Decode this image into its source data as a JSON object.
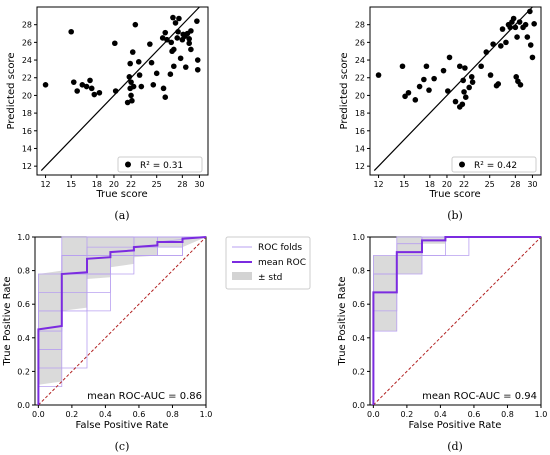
{
  "chart_data": [
    {
      "id": "a",
      "type": "scatter",
      "caption": "(a)",
      "xlabel": "True score",
      "ylabel": "Predicted score",
      "xlim": [
        11,
        31
      ],
      "ylim": [
        11,
        30
      ],
      "xticks": [
        12,
        15,
        18,
        20,
        22,
        25,
        28,
        30
      ],
      "yticks": [
        12,
        14,
        16,
        18,
        20,
        22,
        24,
        26,
        28
      ],
      "diagonal": true,
      "legend_text": "R² = 0.31",
      "legend_position": "lower-right",
      "points": [
        [
          12,
          21.2
        ],
        [
          15,
          27.2
        ],
        [
          15.3,
          21.5
        ],
        [
          15.7,
          20.5
        ],
        [
          16.3,
          21.2
        ],
        [
          16.8,
          21.0
        ],
        [
          17.2,
          21.7
        ],
        [
          17.4,
          20.8
        ],
        [
          17.7,
          20.1
        ],
        [
          18.3,
          20.3
        ],
        [
          20.1,
          25.9
        ],
        [
          20.2,
          20.5
        ],
        [
          21.6,
          19.2
        ],
        [
          21.8,
          22.1
        ],
        [
          21.9,
          23.6
        ],
        [
          21.9,
          20.8
        ],
        [
          22,
          21.5
        ],
        [
          22,
          20.0
        ],
        [
          22.1,
          19.4
        ],
        [
          22.2,
          24.9
        ],
        [
          22.3,
          21.0
        ],
        [
          22.5,
          28.0
        ],
        [
          22.9,
          23.8
        ],
        [
          23.0,
          22.3
        ],
        [
          23.2,
          21.0
        ],
        [
          24.2,
          25.8
        ],
        [
          24.4,
          23.7
        ],
        [
          24.6,
          21.2
        ],
        [
          25.0,
          22.5
        ],
        [
          25.7,
          26.5
        ],
        [
          25.8,
          20.8
        ],
        [
          26.0,
          19.8
        ],
        [
          26.0,
          27.1
        ],
        [
          26.2,
          26.3
        ],
        [
          26.6,
          22.4
        ],
        [
          26.7,
          26.0
        ],
        [
          26.8,
          25.0
        ],
        [
          26.9,
          28.8
        ],
        [
          27.0,
          23.3
        ],
        [
          27.0,
          25.2
        ],
        [
          27.2,
          28.2
        ],
        [
          27.4,
          26.5
        ],
        [
          27.5,
          27.2
        ],
        [
          27.6,
          28.7
        ],
        [
          27.8,
          24.2
        ],
        [
          28.0,
          26.3
        ],
        [
          28.1,
          26.9
        ],
        [
          28.3,
          26.7
        ],
        [
          28.4,
          23.2
        ],
        [
          28.6,
          27.0
        ],
        [
          28.8,
          25.9
        ],
        [
          28.8,
          26.4
        ],
        [
          29.0,
          25.2
        ],
        [
          29.0,
          27.3
        ],
        [
          29.7,
          28.4
        ],
        [
          29.8,
          24.0
        ],
        [
          29.8,
          22.9
        ]
      ]
    },
    {
      "id": "b",
      "type": "scatter",
      "caption": "(b)",
      "xlabel": "True score",
      "ylabel": "Predicted score",
      "xlim": [
        11,
        31
      ],
      "ylim": [
        11,
        30
      ],
      "xticks": [
        12,
        15,
        18,
        20,
        22,
        25,
        28,
        30
      ],
      "yticks": [
        12,
        14,
        16,
        18,
        20,
        22,
        24,
        26,
        28
      ],
      "diagonal": true,
      "legend_text": "R² = 0.42",
      "legend_position": "lower-right",
      "points": [
        [
          12,
          22.3
        ],
        [
          14.8,
          23.3
        ],
        [
          15.1,
          19.9
        ],
        [
          15.5,
          20.3
        ],
        [
          16.3,
          19.5
        ],
        [
          16.8,
          21.0
        ],
        [
          17.3,
          21.8
        ],
        [
          17.6,
          23.3
        ],
        [
          17.9,
          20.6
        ],
        [
          18.5,
          21.9
        ],
        [
          19.6,
          22.8
        ],
        [
          20.3,
          24.3
        ],
        [
          20.1,
          20.5
        ],
        [
          21.0,
          19.3
        ],
        [
          21.5,
          18.7
        ],
        [
          21.5,
          23.3
        ],
        [
          21.8,
          19.0
        ],
        [
          21.9,
          21.7
        ],
        [
          22.0,
          20.4
        ],
        [
          22.1,
          23.1
        ],
        [
          22.2,
          19.8
        ],
        [
          22.6,
          20.9
        ],
        [
          22.9,
          22.1
        ],
        [
          23.0,
          21.5
        ],
        [
          24.0,
          23.3
        ],
        [
          24.6,
          24.9
        ],
        [
          25.1,
          22.3
        ],
        [
          25.4,
          25.8
        ],
        [
          25.8,
          21.1
        ],
        [
          26.0,
          21.3
        ],
        [
          26.3,
          25.6
        ],
        [
          26.5,
          27.5
        ],
        [
          26.9,
          26.0
        ],
        [
          27.2,
          28.0
        ],
        [
          27.4,
          27.7
        ],
        [
          27.6,
          28.3
        ],
        [
          27.8,
          28.7
        ],
        [
          28.0,
          27.7
        ],
        [
          28.1,
          22.1
        ],
        [
          28.2,
          26.6
        ],
        [
          28.3,
          21.6
        ],
        [
          28.5,
          28.3
        ],
        [
          28.6,
          21.2
        ],
        [
          28.9,
          27.7
        ],
        [
          29.2,
          28.0
        ],
        [
          29.4,
          26.6
        ],
        [
          29.7,
          29.5
        ],
        [
          29.8,
          25.7
        ],
        [
          30.0,
          24.3
        ],
        [
          30.2,
          28.1
        ]
      ]
    },
    {
      "id": "c",
      "type": "line",
      "caption": "(c)",
      "xlabel": "False Positive Rate",
      "ylabel": "True Positive Rate",
      "xlim": [
        -0.02,
        1.0
      ],
      "ylim": [
        0.0,
        1.0
      ],
      "xticks": [
        0.0,
        0.2,
        0.4,
        0.6,
        0.8,
        1.0
      ],
      "yticks": [
        0.0,
        0.2,
        0.4,
        0.6,
        0.8,
        1.0
      ],
      "annotation": "mean ROC-AUC = 0.86",
      "legend_position": "outside-right",
      "legend": [
        "ROC folds",
        "mean ROC",
        "± std"
      ],
      "colors": {
        "mean": "#7b2be0",
        "folds": "#b8a0f0",
        "std": "#d3d3d3",
        "chance": "#b22222"
      },
      "mean_roc": {
        "x": [
          0.0,
          0.0,
          0.14,
          0.14,
          0.29,
          0.29,
          0.43,
          0.43,
          0.57,
          0.57,
          0.71,
          0.71,
          0.86,
          0.86,
          1.0
        ],
        "y": [
          0.0,
          0.45,
          0.47,
          0.78,
          0.79,
          0.87,
          0.88,
          0.91,
          0.92,
          0.94,
          0.95,
          0.97,
          0.97,
          0.99,
          1.0
        ]
      },
      "std_upper": {
        "x": [
          0.0,
          0.0,
          0.14,
          0.14,
          0.29,
          0.29,
          0.43,
          0.43,
          0.57,
          0.57,
          0.71,
          0.71,
          0.86,
          1.0
        ],
        "y": [
          0.0,
          0.78,
          0.8,
          1.0,
          1.0,
          1.0,
          1.0,
          1.0,
          1.0,
          1.0,
          1.0,
          1.0,
          1.0,
          1.0
        ]
      },
      "std_lower": {
        "x": [
          0.0,
          0.0,
          0.14,
          0.14,
          0.29,
          0.29,
          0.43,
          0.43,
          0.57,
          0.57,
          0.71,
          0.71,
          0.86,
          1.0
        ],
        "y": [
          0.0,
          0.12,
          0.14,
          0.56,
          0.58,
          0.75,
          0.76,
          0.82,
          0.84,
          0.88,
          0.89,
          0.94,
          0.94,
          1.0
        ]
      },
      "folds": [
        {
          "x": [
            0,
            0,
            0.14,
            0.14,
            0.29,
            0.29,
            0.43,
            0.43,
            0.57,
            0.57,
            1.0
          ],
          "y": [
            0,
            0.78,
            0.78,
            1.0,
            1.0,
            1.0,
            1.0,
            1.0,
            1.0,
            1.0,
            1.0
          ]
        },
        {
          "x": [
            0,
            0,
            0.14,
            0.14,
            0.43,
            0.43,
            0.71,
            0.71,
            1.0
          ],
          "y": [
            0,
            0.44,
            0.44,
            0.78,
            0.78,
            0.89,
            0.89,
            1.0,
            1.0
          ]
        },
        {
          "x": [
            0,
            0,
            0.14,
            0.14,
            0.29,
            0.29,
            0.57,
            0.57,
            1.0
          ],
          "y": [
            0,
            0.33,
            0.33,
            0.67,
            0.67,
            0.89,
            0.89,
            1.0,
            1.0
          ]
        },
        {
          "x": [
            0,
            0,
            0.14,
            0.14,
            0.29,
            0.29,
            0.86,
            0.86,
            1.0
          ],
          "y": [
            0,
            0.56,
            0.56,
            0.89,
            0.89,
            0.94,
            0.94,
            1.0,
            1.0
          ]
        },
        {
          "x": [
            0,
            0,
            0.29,
            0.29,
            0.43,
            0.43,
            0.71,
            0.71,
            1.0
          ],
          "y": [
            0,
            0.22,
            0.22,
            0.67,
            0.67,
            0.89,
            0.89,
            1.0,
            1.0
          ]
        },
        {
          "x": [
            0,
            0,
            0.14,
            0.14,
            0.43,
            0.43,
            0.57,
            0.57,
            0.86,
            0.86,
            1.0
          ],
          "y": [
            0,
            0.11,
            0.11,
            0.56,
            0.56,
            0.78,
            0.78,
            0.89,
            0.89,
            1.0,
            1.0
          ]
        },
        {
          "x": [
            0,
            0,
            0.14,
            0.14,
            0.29,
            0.29,
            1.0
          ],
          "y": [
            0,
            0.67,
            0.67,
            0.89,
            0.89,
            1.0,
            1.0
          ]
        },
        {
          "x": [
            0,
            0,
            0.14,
            0.14,
            0.57,
            0.57,
            1.0
          ],
          "y": [
            0,
            0.44,
            0.44,
            0.89,
            0.89,
            1.0,
            1.0
          ]
        },
        {
          "x": [
            0,
            0,
            0.14,
            0.14,
            0.43,
            0.43,
            0.71,
            0.71,
            1.0
          ],
          "y": [
            0,
            0.33,
            0.33,
            0.78,
            0.78,
            0.89,
            0.89,
            0.97,
            1.0
          ]
        },
        {
          "x": [
            0,
            0,
            0.29,
            0.29,
            0.43,
            0.43,
            0.86,
            0.86,
            1.0
          ],
          "y": [
            0,
            0.56,
            0.56,
            0.78,
            0.78,
            0.89,
            0.89,
            1.0,
            1.0
          ]
        }
      ]
    },
    {
      "id": "d",
      "type": "line",
      "caption": "(d)",
      "xlabel": "False Positive Rate",
      "ylabel": "True Positive Rate",
      "xlim": [
        -0.02,
        1.0
      ],
      "ylim": [
        0.0,
        1.0
      ],
      "xticks": [
        0.0,
        0.2,
        0.4,
        0.6,
        0.8,
        1.0
      ],
      "yticks": [
        0.0,
        0.2,
        0.4,
        0.6,
        0.8,
        1.0
      ],
      "annotation": "mean ROC-AUC = 0.94",
      "colors": {
        "mean": "#7b2be0",
        "folds": "#b8a0f0",
        "std": "#d3d3d3",
        "chance": "#b22222"
      },
      "mean_roc": {
        "x": [
          0.0,
          0.0,
          0.14,
          0.14,
          0.29,
          0.29,
          0.43,
          0.43,
          1.0
        ],
        "y": [
          0.0,
          0.67,
          0.67,
          0.91,
          0.91,
          0.98,
          0.98,
          1.0,
          1.0
        ]
      },
      "std_upper": {
        "x": [
          0.0,
          0.0,
          0.14,
          0.14,
          0.29,
          0.29,
          1.0
        ],
        "y": [
          0.0,
          0.89,
          0.89,
          1.0,
          1.0,
          1.0,
          1.0
        ]
      },
      "std_lower": {
        "x": [
          0.0,
          0.0,
          0.14,
          0.14,
          0.29,
          0.29,
          0.43,
          0.43,
          1.0
        ],
        "y": [
          0.0,
          0.44,
          0.44,
          0.78,
          0.78,
          0.96,
          0.96,
          1.0,
          1.0
        ]
      },
      "folds": [
        {
          "x": [
            0,
            0,
            0.14,
            0.14,
            0.29,
            0.29,
            1.0
          ],
          "y": [
            0,
            0.89,
            0.89,
            1.0,
            1.0,
            1.0,
            1.0
          ]
        },
        {
          "x": [
            0,
            0,
            0.14,
            0.14,
            0.29,
            0.29,
            1.0
          ],
          "y": [
            0,
            0.56,
            0.56,
            0.89,
            0.89,
            1.0,
            1.0
          ]
        },
        {
          "x": [
            0,
            0,
            0.14,
            0.14,
            0.43,
            0.43,
            1.0
          ],
          "y": [
            0,
            0.67,
            0.67,
            0.89,
            0.89,
            1.0,
            1.0
          ]
        },
        {
          "x": [
            0,
            0,
            0.14,
            0.14,
            0.29,
            0.29,
            1.0
          ],
          "y": [
            0,
            0.44,
            0.44,
            0.89,
            0.89,
            1.0,
            1.0
          ]
        },
        {
          "x": [
            0,
            0,
            0.29,
            0.29,
            1.0
          ],
          "y": [
            0,
            0.78,
            0.78,
            1.0,
            1.0
          ]
        },
        {
          "x": [
            0,
            0,
            0.14,
            0.14,
            0.57,
            0.57,
            1.0
          ],
          "y": [
            0,
            0.67,
            0.67,
            0.89,
            0.89,
            1.0,
            1.0
          ]
        },
        {
          "x": [
            0,
            0,
            0.14,
            0.14,
            0.29,
            0.29,
            1.0
          ],
          "y": [
            0,
            0.78,
            0.78,
            0.96,
            0.96,
            1.0,
            1.0
          ]
        }
      ]
    }
  ]
}
